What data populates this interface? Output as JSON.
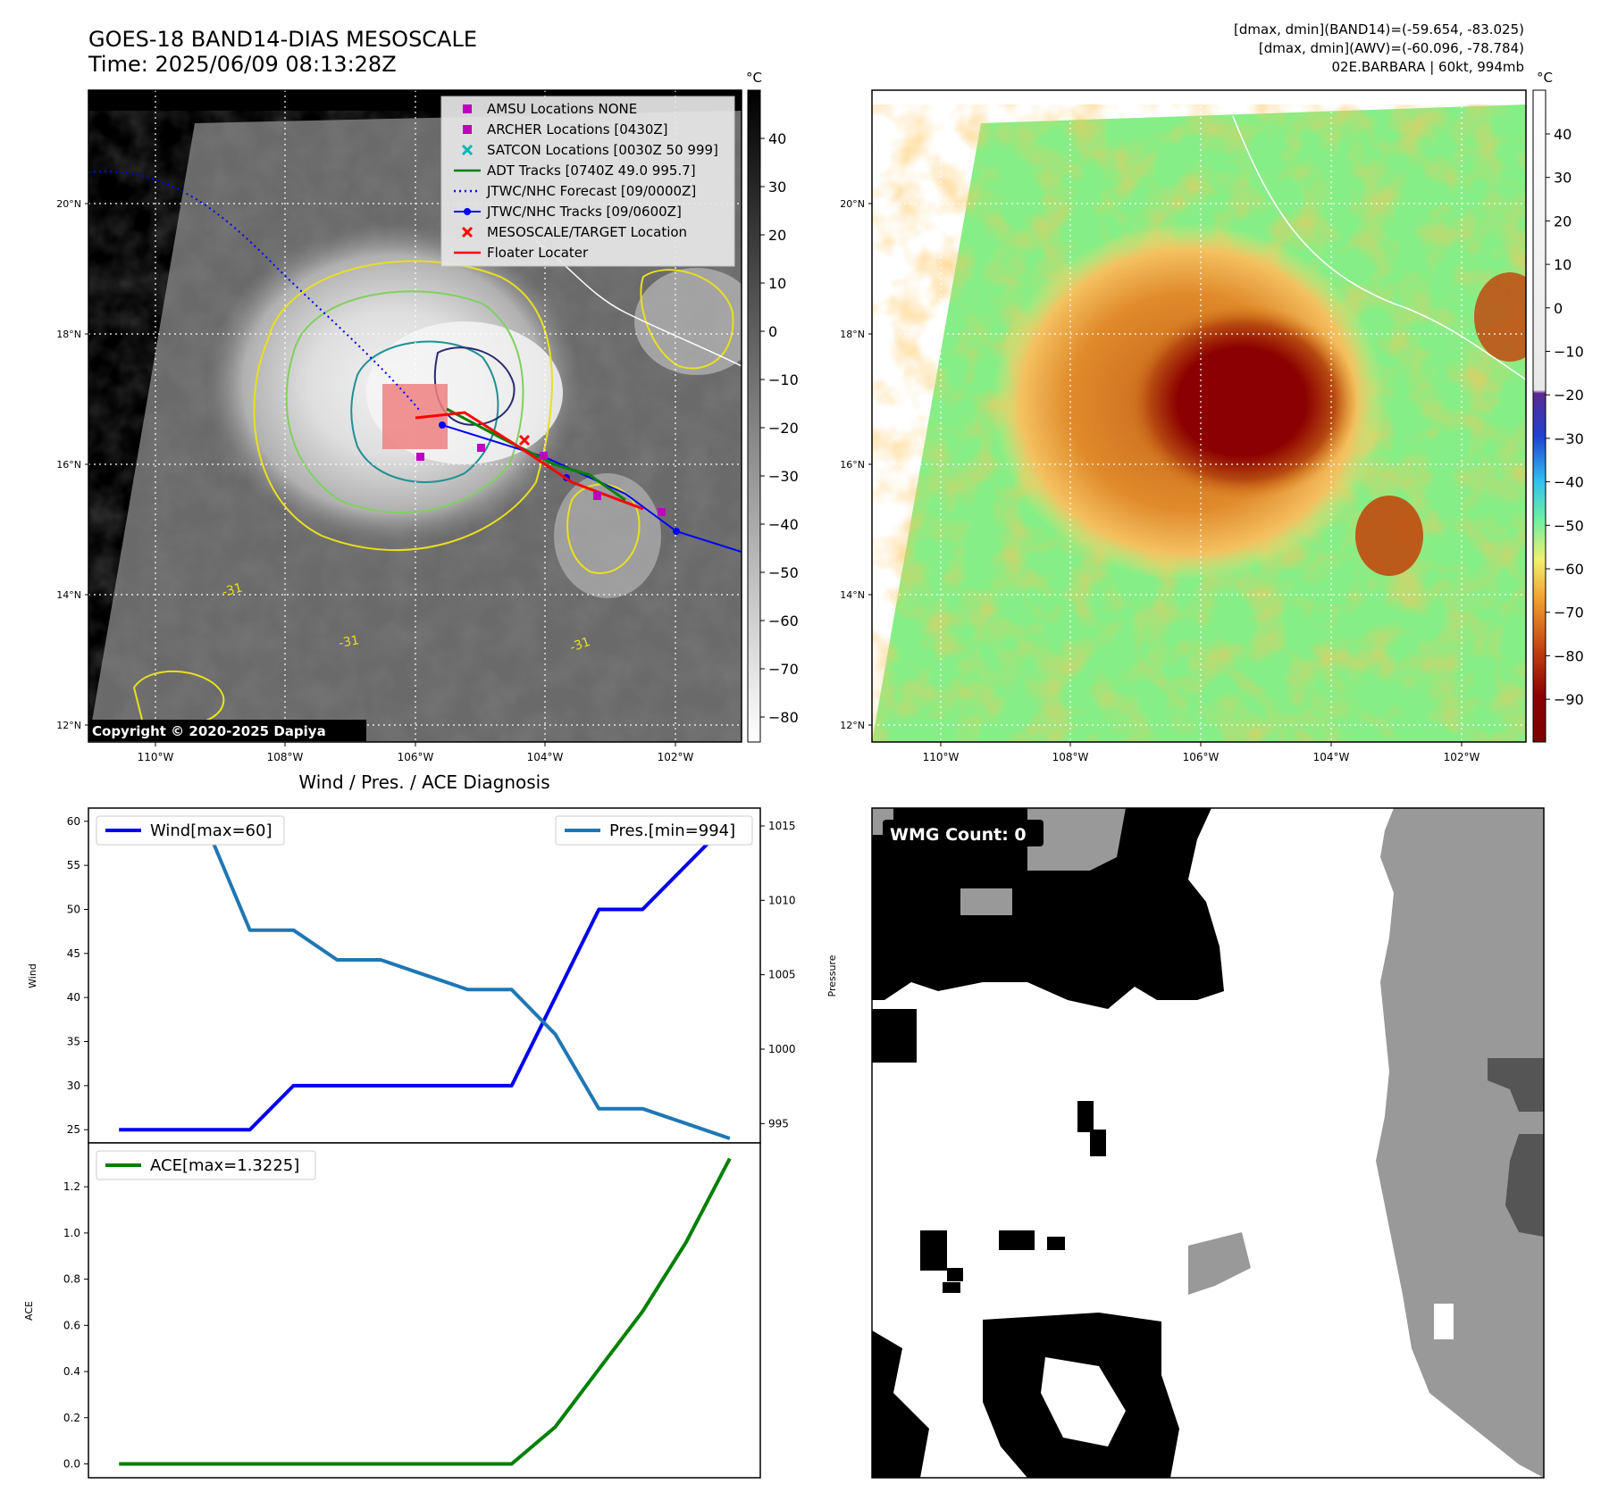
{
  "header": {
    "title": "GOES-18 BAND14-DIAS MESOSCALE",
    "time": "Time: 2025/06/09 08:13:28Z",
    "info_line1": "[dmax, dmin](BAND14)=(-59.654, -83.025)",
    "info_line2": "[dmax, dmin](AWV)=(-60.096, -78.784)",
    "info_line3": "02E.BARBARA | 60kt, 994mb"
  },
  "copyright": "Copyright © 2020-2025 Dapiya",
  "map_axes": {
    "lat_ticks": [
      "20°N",
      "18°N",
      "16°N",
      "14°N",
      "12°N"
    ],
    "lon_ticks": [
      "110°W",
      "108°W",
      "106°W",
      "104°W",
      "102°W"
    ],
    "unit": "°C"
  },
  "colorbar_left": {
    "unit": "°C",
    "ticks": [
      "40",
      "30",
      "20",
      "10",
      "0",
      "−10",
      "−20",
      "−30",
      "−40",
      "−50",
      "−60",
      "−70",
      "−80"
    ]
  },
  "colorbar_right": {
    "unit": "°C",
    "ticks": [
      "40",
      "30",
      "20",
      "10",
      "0",
      "−10",
      "−20",
      "−30",
      "−40",
      "−50",
      "−60",
      "−70",
      "−80",
      "−90"
    ]
  },
  "map_legend": [
    {
      "label": "AMSU Locations NONE",
      "color": "#c000c0",
      "marker": "square"
    },
    {
      "label": "ARCHER Locations [0430Z]",
      "color": "#c000c0",
      "marker": "square"
    },
    {
      "label": "SATCON Locations [0030Z 50 999]",
      "color": "#00b5b5",
      "marker": "x"
    },
    {
      "label": "ADT Tracks [0740Z 49.0 995.7]",
      "color": "#008000",
      "marker": "line"
    },
    {
      "label": "JTWC/NHC Forecast [09/0000Z]",
      "color": "#0000ff",
      "marker": "dotted"
    },
    {
      "label": "JTWC/NHC Tracks [09/0600Z]",
      "color": "#0000ff",
      "marker": "line-dot"
    },
    {
      "label": "MESOSCALE/TARGET Location",
      "color": "#ff0000",
      "marker": "x"
    },
    {
      "label": "Floater Locater",
      "color": "#ff0000",
      "marker": "line"
    }
  ],
  "contour_labels": [
    "-31",
    "-31",
    "-31"
  ],
  "wmg": {
    "label": "WMG Count: 0"
  },
  "chart_data": [
    {
      "type": "line",
      "title": "Wind / Pres. / ACE Diagnosis",
      "ylabel": "Wind",
      "ylim": [
        23.5,
        61.5
      ],
      "yticks": [
        25,
        30,
        35,
        40,
        45,
        50,
        55,
        60
      ],
      "x": [
        0,
        1,
        2,
        3,
        4,
        5,
        6,
        7,
        8,
        9,
        10,
        11,
        12,
        13,
        14
      ],
      "series": [
        {
          "name": "Wind[max=60]",
          "color": "#0000ee",
          "values": [
            25,
            25,
            25,
            25,
            30,
            30,
            30,
            30,
            30,
            30,
            40,
            50,
            50,
            55,
            60
          ]
        }
      ],
      "legend": "top-left"
    },
    {
      "type": "line",
      "ylabel": "Pressure",
      "ylim": [
        993.7,
        1016.2
      ],
      "yticks": [
        995,
        1000,
        1005,
        1010,
        1015
      ],
      "x": [
        0,
        1,
        2,
        3,
        4,
        5,
        6,
        7,
        8,
        9,
        10,
        11,
        12,
        13,
        14
      ],
      "series": [
        {
          "name": "Pres.[min=994]",
          "color": "#1f77b4",
          "values": [
            1015,
            1015,
            1015,
            1008,
            1008,
            1006,
            1006,
            1005,
            1004,
            1004,
            1001,
            996,
            996,
            995,
            994
          ]
        }
      ],
      "legend": "top-right"
    },
    {
      "type": "line",
      "ylabel": "ACE",
      "ylim": [
        -0.06,
        1.39
      ],
      "yticks": [
        "0.0",
        "0.2",
        "0.4",
        "0.6",
        "0.8",
        "1.0",
        "1.2"
      ],
      "x": [
        0,
        1,
        2,
        3,
        4,
        5,
        6,
        7,
        8,
        9,
        10,
        11,
        12,
        13,
        14
      ],
      "series": [
        {
          "name": "ACE[max=1.3225]",
          "color": "#008000",
          "values": [
            0,
            0,
            0,
            0,
            0,
            0,
            0,
            0,
            0,
            0,
            0.16,
            0.41,
            0.66,
            0.96,
            1.3225
          ]
        }
      ],
      "legend": "top-left"
    }
  ]
}
